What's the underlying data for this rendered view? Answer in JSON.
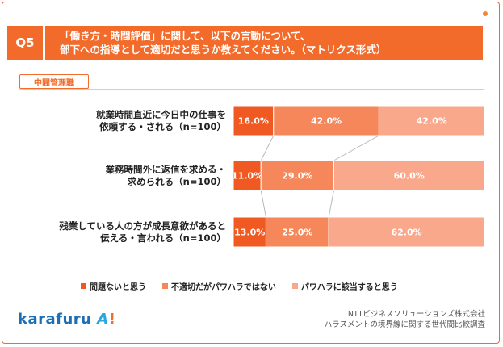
{
  "question": {
    "badge": "Q5",
    "line1": "「働き方・時間評価」に関して、以下の言動について、",
    "line2": "部下への指導として適切だと思うか教えてください。（マトリクス形式）"
  },
  "group_tag": "中間管理職",
  "colors": {
    "accent": "#f26b2a",
    "series": [
      "#f05a22",
      "#f5875a",
      "#f9a88c"
    ],
    "connector": "#b8b8b8"
  },
  "chart_data": {
    "type": "bar",
    "orientation": "horizontal",
    "stacked": true,
    "unit": "%",
    "categories": [
      [
        "就業時間直近に今日中の仕事を",
        "依頼する・される（n=100）"
      ],
      [
        "業務時間外に返信を求める・",
        "求められる（n=100）"
      ],
      [
        "残業している人の方が成長意欲があると",
        "伝える・言われる（n=100）"
      ]
    ],
    "series": [
      {
        "name": "問題ないと思う",
        "values": [
          16.0,
          11.0,
          13.0
        ]
      },
      {
        "name": "不適切だがパワハラではない",
        "values": [
          42.0,
          29.0,
          25.0
        ]
      },
      {
        "name": "パワハラに該当すると思う",
        "values": [
          42.0,
          60.0,
          62.0
        ]
      }
    ],
    "value_labels": [
      [
        "16.0%",
        "42.0%",
        "42.0%"
      ],
      [
        "11.0%",
        "29.0%",
        "60.0%"
      ],
      [
        "13.0%",
        "25.0%",
        "62.0%"
      ]
    ],
    "xlim": [
      0,
      100
    ],
    "legend": "bottom",
    "grid": false
  },
  "logo": {
    "main": "karafuru ",
    "ai": "A",
    "dot": "!"
  },
  "source": {
    "line1": "NTTビジネスソリューションズ株式会社",
    "line2": "ハラスメントの境界線に関する世代間比較調査"
  }
}
